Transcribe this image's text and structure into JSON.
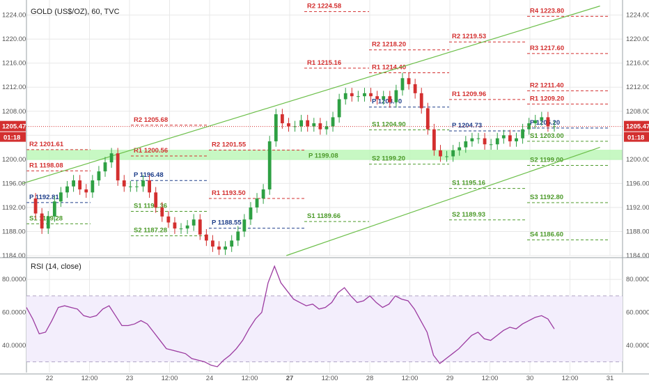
{
  "chart_data": [
    {
      "type": "candlestick",
      "title": "GOLD (US$/OZ), 60, TVC",
      "ylim": [
        1184,
        1226.5
      ],
      "y_ticks": [
        "1224.00",
        "1220.00",
        "1216.00",
        "1212.00",
        "1208.00",
        "1204.00",
        "1200.00",
        "1196.00",
        "1192.00",
        "1188.00",
        "1184.00"
      ],
      "x_ticks": [
        {
          "label": "22",
          "bold": false
        },
        {
          "label": "12:00",
          "bold": false
        },
        {
          "label": "23",
          "bold": false
        },
        {
          "label": "12:00",
          "bold": false
        },
        {
          "label": "24",
          "bold": false
        },
        {
          "label": "12:00",
          "bold": false
        },
        {
          "label": "27",
          "bold": true
        },
        {
          "label": "12:00",
          "bold": false
        },
        {
          "label": "28",
          "bold": false
        },
        {
          "label": "12:00",
          "bold": false
        },
        {
          "label": "29",
          "bold": false
        },
        {
          "label": "12:00",
          "bold": false
        },
        {
          "label": "30",
          "bold": false
        },
        {
          "label": "12:00",
          "bold": false
        },
        {
          "label": "31",
          "bold": false
        }
      ],
      "last_price": 1205.47,
      "last_price_label": "1205.47",
      "countdown": "01:18",
      "support_zone": {
        "from": 1199.9,
        "to": 1201.6,
        "label": "P 1199.08"
      },
      "trend_channel": {
        "upper": [
          {
            "x": "Jan 21 16:00",
            "y": 1196.0
          },
          {
            "x": "Jan 30 21:00",
            "y": 1225.5
          }
        ],
        "lower": [
          {
            "x": "Jan 24 23:00",
            "y": 1184.0
          },
          {
            "x": "Jan 30 21:00",
            "y": 1202.0
          }
        ]
      },
      "pivot_levels": [
        {
          "week": 0,
          "text": "R2 1201.61",
          "value": 1201.61,
          "kind": "R"
        },
        {
          "week": 0,
          "text": "R1 1198.08",
          "value": 1198.08,
          "kind": "R"
        },
        {
          "week": 0,
          "text": "P 1192.81",
          "value": 1192.81,
          "kind": "P"
        },
        {
          "week": 0,
          "text": "S1 1189.28",
          "value": 1189.28,
          "kind": "S"
        },
        {
          "week": 1,
          "text": "R2 1205.68",
          "value": 1205.68,
          "kind": "R"
        },
        {
          "week": 1,
          "text": "R1 1200.56",
          "value": 1200.56,
          "kind": "R"
        },
        {
          "week": 1,
          "text": "P 1196.48",
          "value": 1196.48,
          "kind": "P"
        },
        {
          "week": 1,
          "text": "S1 1191.36",
          "value": 1191.36,
          "kind": "S"
        },
        {
          "week": 1,
          "text": "S2 1187.28",
          "value": 1187.28,
          "kind": "S"
        },
        {
          "week": 2,
          "text": "R2 1201.55",
          "value": 1201.55,
          "kind": "R"
        },
        {
          "week": 2,
          "text": "R1 1193.50",
          "value": 1193.5,
          "kind": "R"
        },
        {
          "week": 2,
          "text": "P 1188.55",
          "value": 1188.55,
          "kind": "P"
        },
        {
          "week": 3,
          "text": "R2 1224.58",
          "value": 1224.58,
          "kind": "R"
        },
        {
          "week": 3,
          "text": "R1 1215.16",
          "value": 1215.16,
          "kind": "R"
        },
        {
          "week": 3,
          "text": "S1 1189.66",
          "value": 1189.66,
          "kind": "S"
        },
        {
          "week": 4,
          "text": "R2 1218.20",
          "value": 1218.2,
          "kind": "R"
        },
        {
          "week": 4,
          "text": "R1 1214.40",
          "value": 1214.4,
          "kind": "R"
        },
        {
          "week": 4,
          "text": "P 1208.70",
          "value": 1208.7,
          "kind": "P"
        },
        {
          "week": 4,
          "text": "S1 1204.90",
          "value": 1204.9,
          "kind": "S"
        },
        {
          "week": 4,
          "text": "S2 1199.20",
          "value": 1199.2,
          "kind": "S"
        },
        {
          "week": 5,
          "text": "R2 1219.53",
          "value": 1219.53,
          "kind": "R"
        },
        {
          "week": 5,
          "text": "R1 1209.96",
          "value": 1209.96,
          "kind": "R"
        },
        {
          "week": 5,
          "text": "P 1204.73",
          "value": 1204.73,
          "kind": "P"
        },
        {
          "week": 5,
          "text": "S1 1195.16",
          "value": 1195.16,
          "kind": "S"
        },
        {
          "week": 5,
          "text": "S2 1189.93",
          "value": 1189.93,
          "kind": "S"
        },
        {
          "week": 6,
          "text": "R4 1223.80",
          "value": 1223.8,
          "kind": "R"
        },
        {
          "week": 6,
          "text": "R3 1217.60",
          "value": 1217.6,
          "kind": "R"
        },
        {
          "week": 6,
          "text": "R2 1211.40",
          "value": 1211.4,
          "kind": "R"
        },
        {
          "week": 6,
          "text": "R1 1209.20",
          "value": 1209.2,
          "kind": "R"
        },
        {
          "week": 6,
          "text": "P 1205.20",
          "value": 1205.2,
          "kind": "P"
        },
        {
          "week": 6,
          "text": "S1 1203.00",
          "value": 1203.0,
          "kind": "S"
        },
        {
          "week": 6,
          "text": "S2 1199.00",
          "value": 1199.0,
          "kind": "S"
        },
        {
          "week": 6,
          "text": "S3 1192.80",
          "value": 1192.8,
          "kind": "S"
        },
        {
          "week": 6,
          "text": "S4 1186.60",
          "value": 1186.6,
          "kind": "S"
        }
      ],
      "price_path": [
        1193.5,
        1191,
        1188.5,
        1190.5,
        1193,
        1194.5,
        1195.5,
        1196.5,
        1195,
        1194.5,
        1196.5,
        1198,
        1199.5,
        1201,
        1196.5,
        1195.5,
        1195.5,
        1195.5,
        1196.5,
        1194.5,
        1192,
        1190.5,
        1189.5,
        1188.5,
        1188.5,
        1189,
        1190,
        1187.5,
        1186.5,
        1185.5,
        1185,
        1185.5,
        1186.5,
        1188,
        1190,
        1192,
        1193.5,
        1195,
        1203,
        1207.5,
        1206,
        1205.5,
        1205.5,
        1206.5,
        1205.5,
        1206,
        1205,
        1205.5,
        1207,
        1210,
        1211,
        1210.5,
        1210.5,
        1211,
        1210.5,
        1210,
        1210.5,
        1209.5,
        1211.5,
        1213.5,
        1212.5,
        1211,
        1208.5,
        1205,
        1201.5,
        1200.5,
        1200.5,
        1201.5,
        1202,
        1203,
        1203.5,
        1203.5,
        1202.5,
        1202.5,
        1203.5,
        1204,
        1203,
        1203.5,
        1205,
        1206,
        1206.5,
        1207,
        1205.5,
        1205.5
      ]
    },
    {
      "type": "line",
      "title": "RSI (14, close)",
      "ylim": [
        23.5,
        91.5
      ],
      "y_ticks": [
        "80.0000",
        "60.0000",
        "40.0000"
      ],
      "bands": [
        70,
        30
      ],
      "series": [
        {
          "values": [
            63,
            56,
            47,
            48,
            55,
            63,
            64,
            63,
            62,
            58,
            57,
            58,
            62,
            64,
            58,
            52,
            52,
            53,
            55,
            53,
            48,
            43,
            38,
            37,
            36,
            35,
            32,
            31,
            30,
            28,
            27,
            31,
            34,
            38,
            43,
            50,
            56,
            60,
            78,
            88,
            78,
            73,
            68,
            66,
            64,
            65,
            62,
            63,
            66,
            72,
            75,
            70,
            66,
            67,
            70,
            66,
            63,
            65,
            70,
            68,
            67,
            62,
            55,
            48,
            34,
            29,
            32,
            35,
            38,
            42,
            46,
            48,
            44,
            43,
            46,
            49,
            51,
            50,
            53,
            55,
            57,
            58,
            56,
            50
          ]
        }
      ]
    }
  ]
}
